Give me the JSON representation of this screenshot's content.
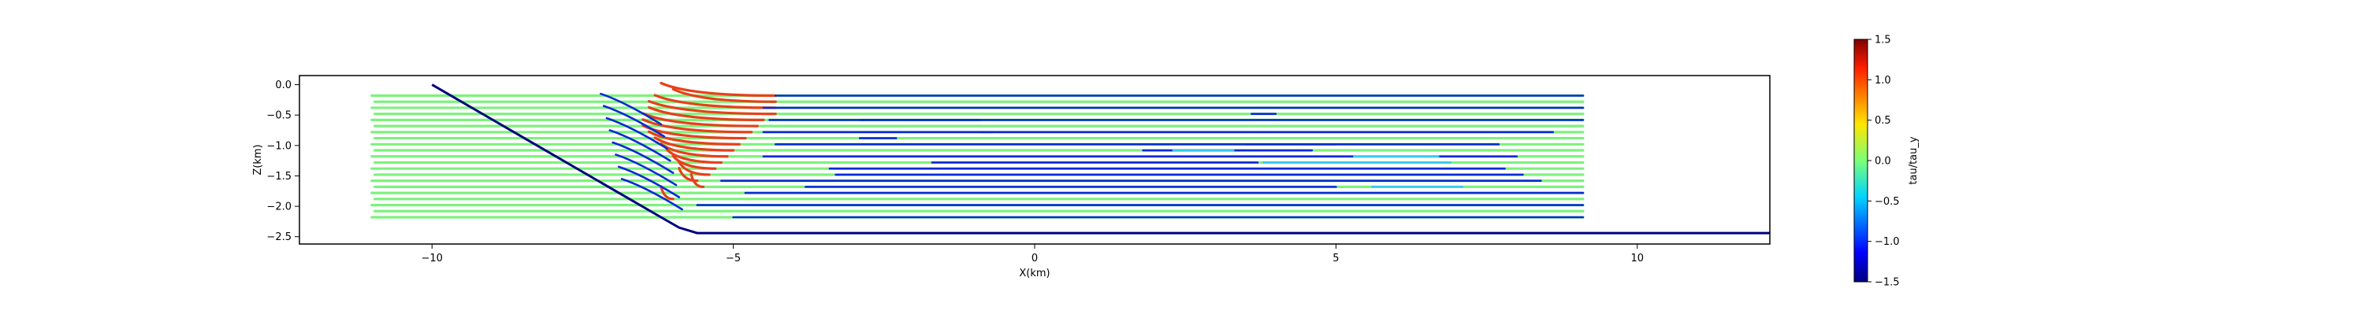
{
  "chart_data": {
    "type": "line",
    "title": "",
    "xlabel": "X(km)",
    "ylabel": "Z(km)",
    "xlim": [
      -12.2,
      12.2
    ],
    "ylim": [
      -2.62,
      0.15
    ],
    "xticks": [
      -10,
      -5,
      0,
      5,
      10
    ],
    "xtick_labels": [
      "−10",
      "−5",
      "0",
      "5",
      "10"
    ],
    "yticks": [
      0.0,
      -0.5,
      -1.0,
      -1.5,
      -2.0,
      -2.5
    ],
    "ytick_labels": [
      "0.0",
      "−0.5",
      "−1.0",
      "−1.5",
      "−2.0",
      "−2.5"
    ],
    "grid": false,
    "legend": "none",
    "boundary": {
      "name": "fault / model boundary",
      "color": "#00007f",
      "x": [
        -10.0,
        -6.2,
        -5.9,
        -5.6,
        12.2
      ],
      "y": [
        0.0,
        -2.18,
        -2.35,
        -2.44,
        -2.44
      ]
    },
    "streamlines": {
      "rows_y": [
        -0.18,
        -0.28,
        -0.38,
        -0.48,
        -0.58,
        -0.68,
        -0.78,
        -0.88,
        -0.98,
        -1.08,
        -1.18,
        -1.28,
        -1.38,
        -1.48,
        -1.58,
        -1.68,
        -1.78,
        -1.88,
        -1.98,
        -2.08,
        -2.18
      ],
      "x_start": -11.0,
      "x_end": 9.1,
      "green_color": "#7cf27c",
      "blue_color": "#0a2ad6",
      "red_color": "#e8401a",
      "cyan_color": "#36c8f0",
      "blue_long_segments": [
        {
          "y": -0.18,
          "x0": -4.3,
          "x1": 9.1
        },
        {
          "y": -0.38,
          "x0": -4.5,
          "x1": 9.1
        },
        {
          "y": -0.58,
          "x0": -4.4,
          "x1": 9.1
        },
        {
          "y": -0.78,
          "x0": -4.5,
          "x1": 8.6
        },
        {
          "y": -0.98,
          "x0": -4.3,
          "x1": 7.7
        },
        {
          "y": -1.18,
          "x0": -4.5,
          "x1": 8.0
        },
        {
          "y": -1.38,
          "x0": -3.4,
          "x1": 7.8
        },
        {
          "y": -1.58,
          "x0": -5.2,
          "x1": 8.4
        },
        {
          "y": -1.78,
          "x0": -4.8,
          "x1": 9.1
        },
        {
          "y": -1.98,
          "x0": -5.6,
          "x1": 9.1
        },
        {
          "y": -2.18,
          "x0": -5.0,
          "x1": 9.1
        }
      ],
      "blue_short_segments": [
        {
          "y": -0.58,
          "x0": -2.9,
          "x1": -0.9
        },
        {
          "y": -0.88,
          "x0": -2.9,
          "x1": -2.3
        },
        {
          "y": -0.78,
          "x0": -0.9,
          "x1": -0.7
        },
        {
          "y": -1.08,
          "x0": 1.8,
          "x1": 4.6
        },
        {
          "y": -0.98,
          "x0": 3.5,
          "x1": 5.0
        },
        {
          "y": -1.28,
          "x0": -1.7,
          "x1": 3.7
        },
        {
          "y": -1.48,
          "x0": -3.3,
          "x1": 8.1
        },
        {
          "y": -0.48,
          "x0": 3.6,
          "x1": 4.0
        },
        {
          "y": -1.68,
          "x0": -3.8,
          "x1": 5.0
        }
      ],
      "cyan_segments": [
        {
          "y": -1.08,
          "x0": 2.3,
          "x1": 3.3
        },
        {
          "y": -1.18,
          "x0": 5.3,
          "x1": 6.7
        },
        {
          "y": -1.28,
          "x0": 3.8,
          "x1": 6.9
        },
        {
          "y": -1.68,
          "x0": 5.6,
          "x1": 7.1
        }
      ],
      "red_segments": [
        {
          "y": -0.18,
          "x0": -6.2,
          "x1": -4.3
        },
        {
          "y": -0.28,
          "x0": -6.0,
          "x1": -4.3
        },
        {
          "y": -0.38,
          "x0": -6.3,
          "x1": -4.3
        },
        {
          "y": -0.48,
          "x0": -6.4,
          "x1": -4.3
        },
        {
          "y": -0.58,
          "x0": -6.4,
          "x1": -4.5
        },
        {
          "y": -0.68,
          "x0": -6.5,
          "x1": -4.6
        },
        {
          "y": -0.78,
          "x0": -6.5,
          "x1": -4.7
        },
        {
          "y": -0.88,
          "x0": -6.5,
          "x1": -4.8
        },
        {
          "y": -0.98,
          "x0": -6.4,
          "x1": -4.9
        },
        {
          "y": -1.08,
          "x0": -6.3,
          "x1": -5.0
        },
        {
          "y": -1.18,
          "x0": -6.2,
          "x1": -5.1
        },
        {
          "y": -1.28,
          "x0": -6.1,
          "x1": -5.2
        },
        {
          "y": -1.38,
          "x0": -6.0,
          "x1": -5.3
        },
        {
          "y": -1.48,
          "x0": -5.9,
          "x1": -5.4
        },
        {
          "y": -1.58,
          "x0": -5.9,
          "x1": -5.6
        },
        {
          "y": -1.68,
          "x0": -5.7,
          "x1": -5.5
        },
        {
          "y": -1.88,
          "x0": -6.2,
          "x1": -6.0
        }
      ]
    },
    "colorbar": {
      "label": "tau/tau_y",
      "min": -1.5,
      "max": 1.5,
      "ticks": [
        1.5,
        1.0,
        0.5,
        0.0,
        -0.5,
        -1.0,
        -1.5
      ],
      "tick_labels": [
        "1.5",
        "1.0",
        "0.5",
        "0.0",
        "−0.5",
        "−1.0",
        "−1.5"
      ],
      "colormap": "jet"
    }
  }
}
